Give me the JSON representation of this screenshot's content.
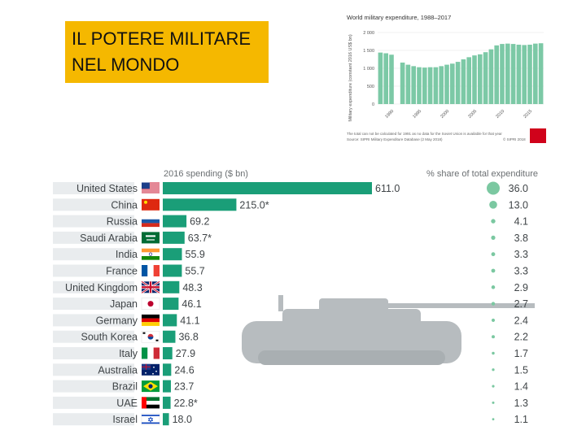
{
  "title": {
    "line1": "IL POTERE MILITARE",
    "line2": "NEL MONDO"
  },
  "colors": {
    "title_bg": "#f5b800",
    "bar": "#1a9e78",
    "mini_bar": "#7cc9a6",
    "tank": "#b7bcbf",
    "row_bg": "#e9ecee"
  },
  "chart_data": [
    {
      "type": "bar",
      "title": "World military expenditure, 1988–2017",
      "ylabel": "Military expenditure (constant 2016 US$ bn)",
      "ylim": [
        0,
        2000
      ],
      "yticks": [
        "0",
        "500",
        "1 000",
        "1 500",
        "2 000"
      ],
      "xticks": [
        "1990",
        "1995",
        "2000",
        "2005",
        "2010",
        "2015"
      ],
      "x": [
        1988,
        1989,
        1990,
        1991,
        1992,
        1993,
        1994,
        1995,
        1996,
        1997,
        1998,
        1999,
        2000,
        2001,
        2002,
        2003,
        2004,
        2005,
        2006,
        2007,
        2008,
        2009,
        2010,
        2011,
        2012,
        2013,
        2014,
        2015,
        2016,
        2017
      ],
      "values": [
        1440,
        1420,
        1380,
        null,
        1160,
        1100,
        1060,
        1030,
        1020,
        1030,
        1030,
        1060,
        1100,
        1130,
        1180,
        1250,
        1310,
        1360,
        1390,
        1450,
        1530,
        1640,
        1680,
        1690,
        1680,
        1660,
        1650,
        1660,
        1690,
        1700
      ],
      "footnote_1": "The total can not be calculated for 1991 as no data for the Soviet Union is available for that year",
      "footnote_2": "Source: SIPRI Military Expenditure Database (2 May 2018)",
      "brand": "© SIPRI 2018"
    },
    {
      "type": "bar",
      "header_left": "2016 spending ($ bn)",
      "header_right": "% share of total expenditure",
      "categories": [
        "United States",
        "China",
        "Russia",
        "Saudi Arabia",
        "India",
        "France",
        "United Kingdom",
        "Japan",
        "Germany",
        "South Korea",
        "Italy",
        "Australia",
        "Brazil",
        "UAE",
        "Israel"
      ],
      "value_labels": [
        "611.0",
        "215.0*",
        "69.2",
        "63.7*",
        "55.9",
        "55.7",
        "48.3",
        "46.1",
        "41.1",
        "36.8",
        "27.9",
        "24.6",
        "23.7",
        "22.8*",
        "18.0"
      ],
      "values": [
        611.0,
        215.0,
        69.2,
        63.7,
        55.9,
        55.7,
        48.3,
        46.1,
        41.1,
        36.8,
        27.9,
        24.6,
        23.7,
        22.8,
        18.0
      ],
      "shares": [
        36.0,
        13.0,
        4.1,
        3.8,
        3.3,
        3.3,
        2.9,
        2.7,
        2.4,
        2.2,
        1.7,
        1.5,
        1.4,
        1.3,
        1.1
      ],
      "share_labels": [
        "36.0",
        "13.0",
        "4.1",
        "3.8",
        "3.3",
        "3.3",
        "2.9",
        "2.7",
        "2.4",
        "2.2",
        "1.7",
        "1.5",
        "1.4",
        "1.3",
        "1.1"
      ],
      "flags": [
        "us-flag-icon",
        "china-flag-icon",
        "russia-flag-icon",
        "saudi-arabia-flag-icon",
        "india-flag-icon",
        "france-flag-icon",
        "uk-flag-icon",
        "japan-flag-icon",
        "germany-flag-icon",
        "south-korea-flag-icon",
        "italy-flag-icon",
        "australia-flag-icon",
        "brazil-flag-icon",
        "uae-flag-icon",
        "israel-flag-icon"
      ],
      "xlim": [
        0,
        611.0
      ]
    }
  ]
}
